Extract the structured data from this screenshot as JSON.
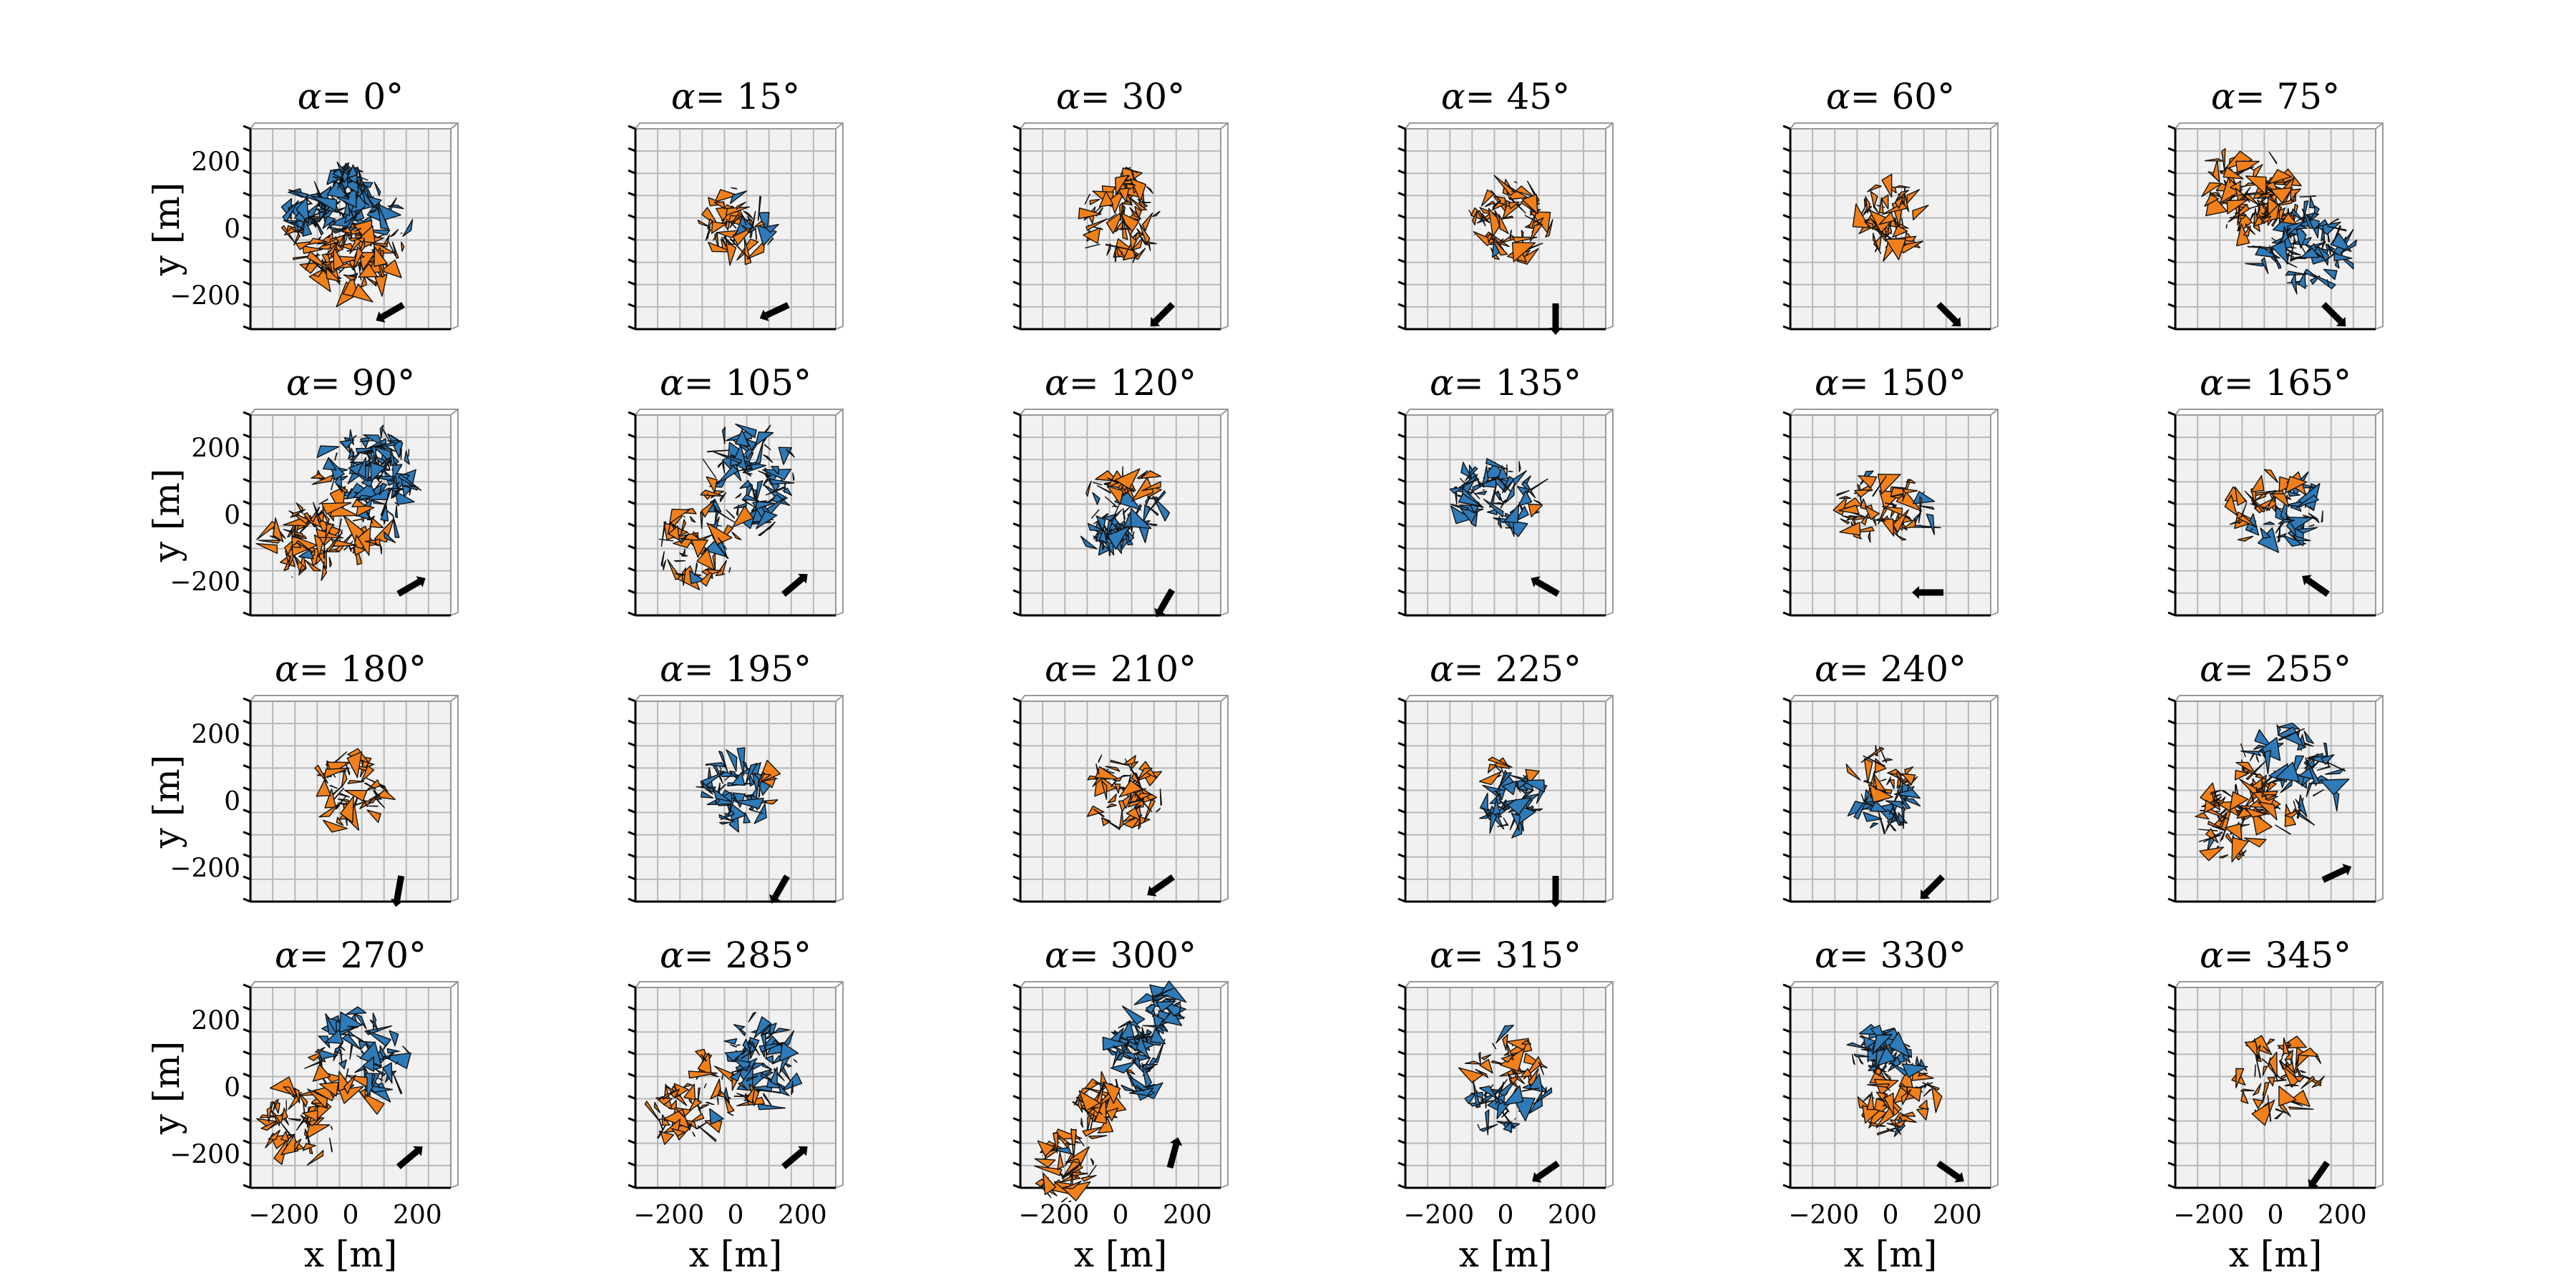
{
  "colors": {
    "orange": "#f2801a",
    "blue": "#2f7ab8",
    "facet_edge": "#111111",
    "grid": "#b8b8b8",
    "pane": "#f1f1f1"
  },
  "chart_data": {
    "type": "scatter",
    "title_prefix": "α=",
    "xlabel": "x [m]",
    "ylabel": "y [m]",
    "xticks": [
      "−200",
      "0",
      "200"
    ],
    "yticks": [
      "200",
      "0",
      "−200"
    ],
    "xlim": [
      -300,
      300
    ],
    "ylim": [
      -300,
      300
    ],
    "grid": true,
    "panels": [
      {
        "alpha": "0°",
        "shape": [
          [
            -150,
            40,
            55,
            90
          ],
          [
            10,
            -25,
            170,
            200
          ],
          [
            -30,
            10,
            100,
            170
          ],
          [
            -20,
            140,
            45,
            45
          ]
        ],
        "split": [
          0,
          1,
          0.5
        ],
        "blue_side": 1,
        "blue_frac": 0.12,
        "arrow_angle": 210
      },
      {
        "alpha": "15°",
        "shape": [
          [
            10,
            10,
            115,
            115
          ]
        ],
        "split": [
          1,
          0,
          -80
        ],
        "blue_side": 1,
        "blue_frac": 0.1,
        "arrow_angle": 205
      },
      {
        "alpha": "30°",
        "shape": [
          [
            10,
            15,
            125,
            120
          ],
          [
            30,
            130,
            30,
            40
          ]
        ],
        "split": [
          0,
          0,
          0
        ],
        "blue_side": 0,
        "blue_frac": 0,
        "arrow_angle": 225
      },
      {
        "alpha": "45°",
        "shape": [
          [
            10,
            20,
            120,
            130
          ]
        ],
        "split": [
          0,
          0,
          0
        ],
        "blue_side": 0,
        "blue_frac": 0.02,
        "arrow_angle": 270
      },
      {
        "alpha": "60°",
        "shape": [
          [
            0,
            30,
            115,
            115
          ]
        ],
        "split": [
          0,
          0,
          0
        ],
        "blue_side": 0,
        "blue_frac": 0,
        "arrow_angle": 315
      },
      {
        "alpha": "75°",
        "shape": [
          [
            -100,
            120,
            110,
            120
          ],
          [
            0,
            20,
            140,
            150
          ],
          [
            110,
            -60,
            120,
            130
          ]
        ],
        "split": [
          1,
          -1,
          -20
        ],
        "blue_side": 1,
        "blue_frac": 0.5,
        "arrow_angle": 315
      },
      {
        "alpha": "90°",
        "shape": [
          [
            -150,
            -80,
            120,
            120
          ],
          [
            30,
            60,
            150,
            200
          ],
          [
            120,
            140,
            80,
            120
          ]
        ],
        "split": [
          1,
          1,
          -60
        ],
        "blue_side": 1,
        "blue_frac": 0.6,
        "arrow_angle": 30
      },
      {
        "alpha": "105°",
        "shape": [
          [
            -120,
            -90,
            110,
            120
          ],
          [
            40,
            100,
            150,
            170
          ]
        ],
        "split": [
          1,
          1,
          -20
        ],
        "blue_side": 1,
        "blue_frac": 0.55,
        "arrow_angle": 40
      },
      {
        "alpha": "120°",
        "shape": [
          [
            10,
            30,
            110,
            140
          ],
          [
            -20,
            -60,
            70,
            60
          ]
        ],
        "split": [
          0,
          -1,
          50
        ],
        "blue_side": 1,
        "blue_frac": 0.2,
        "arrow_angle": 240
      },
      {
        "alpha": "135°",
        "shape": [
          [
            -30,
            60,
            150,
            110
          ]
        ],
        "split": [
          -1,
          0,
          80
        ],
        "blue_side": 1,
        "blue_frac": 0.35,
        "arrow_angle": 150
      },
      {
        "alpha": "150°",
        "shape": [
          [
            -10,
            20,
            160,
            110
          ]
        ],
        "split": [
          1,
          0,
          -80
        ],
        "blue_side": 1,
        "blue_frac": 0.3,
        "arrow_angle": 180
      },
      {
        "alpha": "165°",
        "shape": [
          [
            0,
            20,
            150,
            110
          ]
        ],
        "split": [
          1,
          -1,
          20
        ],
        "blue_side": 1,
        "blue_frac": 0.35,
        "arrow_angle": 145
      },
      {
        "alpha": "180°",
        "shape": [
          [
            0,
            30,
            120,
            110
          ]
        ],
        "split": [
          0,
          0,
          0
        ],
        "blue_side": 0,
        "blue_frac": 0.05,
        "arrow_angle": 260
      },
      {
        "alpha": "195°",
        "shape": [
          [
            10,
            30,
            130,
            110
          ]
        ],
        "split": [
          -1,
          0,
          90
        ],
        "blue_side": 1,
        "blue_frac": 0.05,
        "arrow_angle": 240
      },
      {
        "alpha": "210°",
        "shape": [
          [
            10,
            20,
            115,
            125
          ]
        ],
        "split": [
          0,
          0,
          0
        ],
        "blue_side": 0,
        "blue_frac": 0,
        "arrow_angle": 215
      },
      {
        "alpha": "225°",
        "shape": [
          [
            10,
            20,
            110,
            120
          ]
        ],
        "split": [
          0,
          -1,
          70
        ],
        "blue_side": 1,
        "blue_frac": 0.1,
        "arrow_angle": 270
      },
      {
        "alpha": "240°",
        "shape": [
          [
            -20,
            30,
            100,
            140
          ]
        ],
        "split": [
          0,
          -1,
          30
        ],
        "blue_side": 1,
        "blue_frac": 0.15,
        "arrow_angle": 225
      },
      {
        "alpha": "255°",
        "shape": [
          [
            -130,
            -60,
            110,
            120
          ],
          [
            40,
            80,
            160,
            160
          ]
        ],
        "split": [
          1,
          1,
          -40
        ],
        "blue_side": 1,
        "blue_frac": 0.6,
        "arrow_angle": 25
      },
      {
        "alpha": "270°",
        "shape": [
          [
            -160,
            -100,
            110,
            120
          ],
          [
            20,
            80,
            150,
            150
          ]
        ],
        "split": [
          1,
          1,
          -40
        ],
        "blue_side": 1,
        "blue_frac": 0.55,
        "arrow_angle": 40
      },
      {
        "alpha": "285°",
        "shape": [
          [
            -150,
            -80,
            100,
            100
          ],
          [
            40,
            70,
            160,
            150
          ]
        ],
        "split": [
          1,
          1,
          -40
        ],
        "blue_side": 1,
        "blue_frac": 0.6,
        "arrow_angle": 40
      },
      {
        "alpha": "300°",
        "shape": [
          [
            -170,
            -240,
            90,
            110
          ],
          [
            -60,
            -60,
            70,
            90
          ],
          [
            50,
            120,
            90,
            150
          ],
          [
            130,
            240,
            60,
            60
          ]
        ],
        "split": [
          1,
          1,
          -40
        ],
        "blue_side": 1,
        "blue_frac": 0.55,
        "arrow_angle": 75
      },
      {
        "alpha": "315°",
        "shape": [
          [
            0,
            20,
            120,
            160
          ]
        ],
        "split": [
          0,
          -1,
          20
        ],
        "blue_side": 1,
        "blue_frac": 0.3,
        "arrow_angle": 215
      },
      {
        "alpha": "330°",
        "shape": [
          [
            -40,
            100,
            80,
            80
          ],
          [
            20,
            0,
            120,
            150
          ]
        ],
        "split": [
          0,
          1,
          -50
        ],
        "blue_side": 1,
        "blue_frac": 0.35,
        "arrow_angle": 325
      },
      {
        "alpha": "345°",
        "shape": [
          [
            0,
            30,
            130,
            120
          ]
        ],
        "split": [
          0,
          0,
          0
        ],
        "blue_side": 0,
        "blue_frac": 0.05,
        "arrow_angle": 235
      }
    ]
  }
}
